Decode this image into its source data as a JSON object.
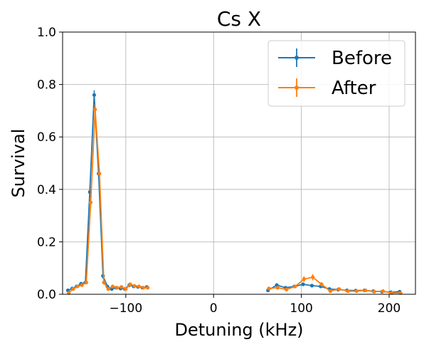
{
  "chart_data": {
    "type": "line",
    "title": "Cs X",
    "xlabel": "Detuning (kHz)",
    "ylabel": "Survival",
    "xlim": [
      -172,
      230
    ],
    "ylim": [
      0,
      1.0
    ],
    "xticks": [
      -100,
      0,
      100,
      200
    ],
    "xtick_labels": [
      "−100",
      "0",
      "100",
      "200"
    ],
    "yticks": [
      0,
      0.2,
      0.4,
      0.6,
      0.8,
      1.0
    ],
    "ytick_labels": [
      "0.0",
      "0.2",
      "0.4",
      "0.6",
      "0.8",
      "1.0"
    ],
    "grid": true,
    "legend_position": "top-right",
    "series": [
      {
        "name": "Before",
        "color": "#1f77b4",
        "segments": [
          {
            "x": [
              -166,
              -161,
              -156,
              -151,
              -146,
              -141,
              -136,
              -131,
              -126,
              -121,
              -116,
              -111,
              -106,
              -101,
              -96,
              -91,
              -86,
              -81,
              -76
            ],
            "y": [
              0.015,
              0.022,
              0.03,
              0.04,
              0.045,
              0.39,
              0.76,
              0.46,
              0.07,
              0.03,
              0.02,
              0.025,
              0.022,
              0.02,
              0.035,
              0.03,
              0.028,
              0.025,
              0.028
            ],
            "err": [
              0.005,
              0.006,
              0.006,
              0.007,
              0.007,
              0.02,
              0.018,
              0.02,
              0.01,
              0.006,
              0.005,
              0.006,
              0.005,
              0.005,
              0.007,
              0.006,
              0.006,
              0.005,
              0.006
            ]
          },
          {
            "x": [
              62,
              72,
              82,
              92,
              102,
              112,
              122,
              132,
              142,
              152,
              162,
              172,
              182,
              192,
              202,
              212
            ],
            "y": [
              0.015,
              0.035,
              0.025,
              0.03,
              0.038,
              0.033,
              0.03,
              0.02,
              0.018,
              0.015,
              0.014,
              0.015,
              0.012,
              0.01,
              0.008,
              0.01
            ],
            "err": [
              0.005,
              0.007,
              0.006,
              0.006,
              0.007,
              0.006,
              0.006,
              0.005,
              0.005,
              0.005,
              0.004,
              0.005,
              0.004,
              0.004,
              0.003,
              0.004
            ]
          }
        ]
      },
      {
        "name": "After",
        "color": "#ff7f0e",
        "segments": [
          {
            "x": [
              -165,
              -160,
              -155,
              -150,
              -145,
              -140,
              -135,
              -130,
              -125,
              -120,
              -115,
              -110,
              -105,
              -100,
              -95,
              -90,
              -85,
              -80,
              -75
            ],
            "y": [
              0.005,
              0.02,
              0.03,
              0.035,
              0.045,
              0.35,
              0.705,
              0.46,
              0.045,
              0.02,
              0.03,
              0.025,
              0.028,
              0.02,
              0.038,
              0.032,
              0.03,
              0.025,
              0.025
            ],
            "err": [
              0.004,
              0.006,
              0.006,
              0.007,
              0.007,
              0.02,
              0.02,
              0.02,
              0.008,
              0.005,
              0.006,
              0.006,
              0.006,
              0.005,
              0.007,
              0.006,
              0.006,
              0.005,
              0.005
            ]
          },
          {
            "x": [
              63,
              73,
              83,
              93,
              103,
              113,
              123,
              133,
              143,
              153,
              163,
              173,
              183,
              193,
              203,
              213
            ],
            "y": [
              0.022,
              0.025,
              0.018,
              0.03,
              0.058,
              0.065,
              0.038,
              0.012,
              0.02,
              0.012,
              0.012,
              0.015,
              0.01,
              0.012,
              0.005,
              0.005
            ],
            "err": [
              0.005,
              0.006,
              0.005,
              0.006,
              0.01,
              0.012,
              0.008,
              0.004,
              0.005,
              0.004,
              0.004,
              0.005,
              0.004,
              0.004,
              0.003,
              0.003
            ]
          }
        ]
      }
    ]
  }
}
